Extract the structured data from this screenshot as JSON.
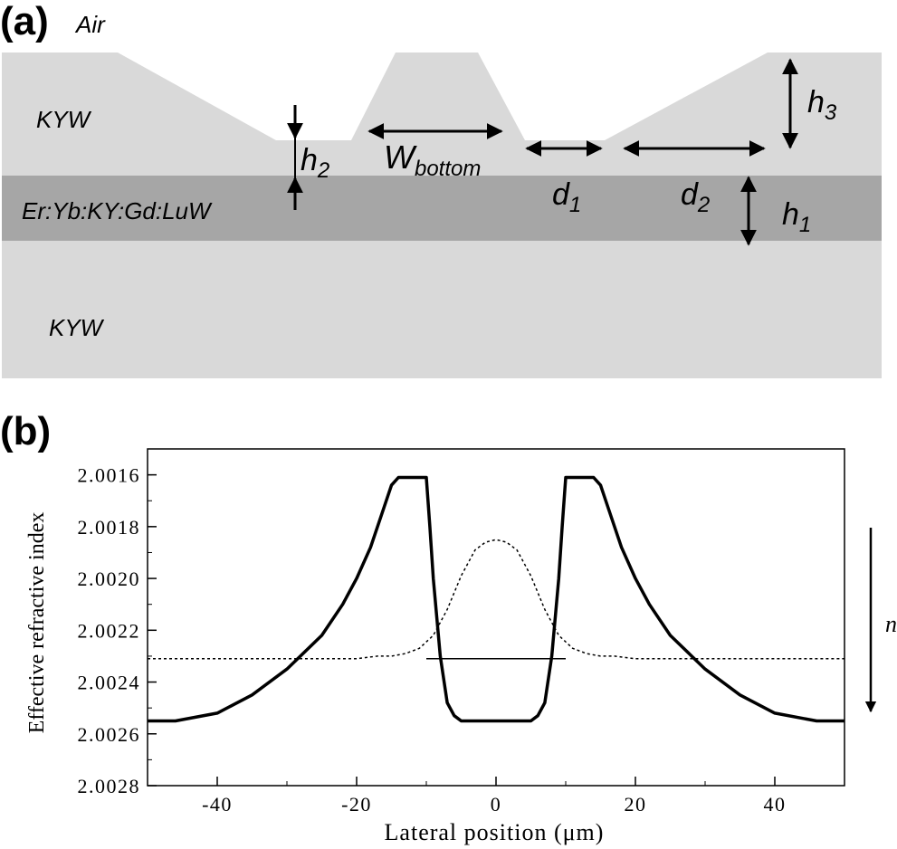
{
  "panel_a": {
    "label": "(a)",
    "air_label": "Air",
    "kyw_top_label": "KYW",
    "active_layer_label": "Er:Yb:KY:Gd:LuW",
    "kyw_bottom_label": "KYW",
    "dims": {
      "h1": "h",
      "h1_sub": "1",
      "h2": "h",
      "h2_sub": "2",
      "h3": "h",
      "h3_sub": "3",
      "w_bottom": "W",
      "w_bottom_sub": "bottom",
      "d1": "d",
      "d1_sub": "1",
      "d2": "d",
      "d2_sub": "2"
    },
    "colors": {
      "cladding": "#d9d9d9",
      "active_layer": "#a6a6a6",
      "arrow": "#000000"
    }
  },
  "panel_b": {
    "label": "(b)",
    "side_label": "n",
    "chart_data": {
      "type": "line",
      "xlabel": "Lateral position (μm)",
      "ylabel": "Effective refractive index",
      "xlim": [
        -50,
        50
      ],
      "ylim": [
        2.0015,
        2.0028
      ],
      "y_inverted": true,
      "x_ticks": [
        -40,
        -20,
        0,
        20,
        40
      ],
      "x_tick_labels": [
        "-40",
        "-20",
        "0",
        "20",
        "40"
      ],
      "y_ticks": [
        2.0016,
        2.0018,
        2.002,
        2.0022,
        2.0024,
        2.0026,
        2.0028
      ],
      "y_tick_labels": [
        "2.0016",
        "2.0018",
        "2.0020",
        "2.0022",
        "2.0024",
        "2.0026",
        "2.0028"
      ],
      "grid": false,
      "series": [
        {
          "style": "thick-solid",
          "x": [
            -50,
            -46,
            -40,
            -35,
            -30,
            -25,
            -22,
            -20,
            -18,
            -16,
            -15,
            -14,
            -13,
            -12,
            -11,
            -10,
            -9.5,
            -9,
            -8,
            -7,
            -6,
            -5,
            -4,
            -3,
            0,
            3,
            4,
            5,
            6,
            7,
            8,
            9,
            9.5,
            10,
            11,
            12,
            13,
            14,
            15,
            16,
            18,
            20,
            22,
            25,
            30,
            35,
            40,
            46,
            50
          ],
          "y": [
            2.00255,
            2.00255,
            2.00252,
            2.00245,
            2.00235,
            2.00222,
            2.0021,
            2.002,
            2.00188,
            2.00172,
            2.00164,
            2.00161,
            2.00161,
            2.00161,
            2.00161,
            2.00161,
            2.0018,
            2.002,
            2.0023,
            2.00248,
            2.00253,
            2.00255,
            2.00255,
            2.00255,
            2.00255,
            2.00255,
            2.00255,
            2.00255,
            2.00253,
            2.00248,
            2.0023,
            2.002,
            2.0018,
            2.00161,
            2.00161,
            2.00161,
            2.00161,
            2.00161,
            2.00164,
            2.00172,
            2.00188,
            2.002,
            2.0021,
            2.00222,
            2.00235,
            2.00245,
            2.00252,
            2.00255,
            2.00255
          ]
        },
        {
          "style": "dotted",
          "x": [
            -50,
            -25,
            -20,
            -17,
            -15,
            -13,
            -11,
            -9,
            -7,
            -5,
            -3,
            -1.5,
            0,
            1.5,
            3,
            5,
            7,
            9,
            11,
            13,
            15,
            17,
            20,
            25,
            50
          ],
          "y": [
            2.00231,
            2.00231,
            2.00231,
            2.0023,
            2.0023,
            2.00229,
            2.00227,
            2.00222,
            2.00212,
            2.00199,
            2.00189,
            2.00186,
            2.00185,
            2.00186,
            2.00189,
            2.00199,
            2.00212,
            2.00222,
            2.00227,
            2.00229,
            2.0023,
            2.0023,
            2.00231,
            2.00231,
            2.00231
          ]
        },
        {
          "style": "thin-solid",
          "x": [
            -10,
            10
          ],
          "y": [
            2.00231,
            2.00231
          ]
        }
      ]
    }
  }
}
